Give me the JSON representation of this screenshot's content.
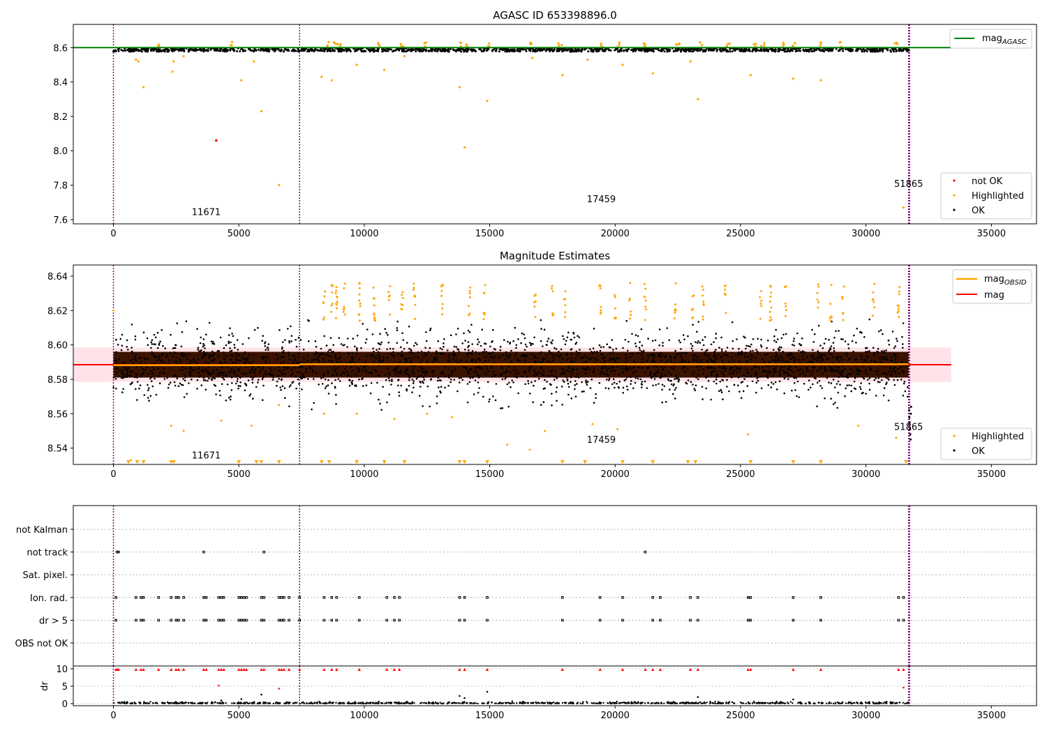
{
  "colors": {
    "ok": "#000000",
    "highlighted": "#ffa500",
    "not_ok": "#ff0000",
    "mag_agasc": "#008000",
    "mag_obsid": "#ffa500",
    "mag": "#ff0000",
    "band_fill": "#ffc0cb",
    "obsid_marker": "#800080",
    "dense_core": "#3a1200"
  },
  "chart_data": [
    {
      "type": "scatter",
      "title": "AGASC ID 653398896.0",
      "xlim": [
        -1600,
        36800
      ],
      "ylim": [
        7.575,
        8.735
      ],
      "xticks": [
        0,
        5000,
        10000,
        15000,
        20000,
        25000,
        30000,
        35000
      ],
      "xtick_labels": [
        "0",
        "5000",
        "10000",
        "15000",
        "20000",
        "25000",
        "30000",
        "35000"
      ],
      "yticks": [
        7.6,
        7.8,
        8.0,
        8.2,
        8.4,
        8.6
      ],
      "ytick_labels": [
        "7.6",
        "7.8",
        "8.0",
        "8.2",
        "8.4",
        "8.6"
      ],
      "lines": [
        {
          "name": "mag_AGASC",
          "y": 8.6,
          "x": [
            -1600,
            33400
          ]
        }
      ],
      "vlines": [
        0,
        7420,
        31700,
        31720,
        31740
      ],
      "annotations": [
        {
          "text": "11671",
          "x": 3700,
          "y": 7.625
        },
        {
          "text": "17459",
          "x": 19450,
          "y": 7.7
        },
        {
          "text": "51865",
          "x": 31700,
          "y": 7.79
        }
      ],
      "legend_line": {
        "label_main": "mag",
        "label_sub": "AGASC",
        "placement": "upper right"
      },
      "legend_points": {
        "entries": [
          "not OK",
          "Highlighted",
          "OK"
        ],
        "placement": "lower right"
      },
      "ok_band": {
        "y_center": 8.587,
        "spread": 0.013,
        "x": [
          0,
          31700
        ]
      },
      "highlighted_points": [
        [
          900,
          8.53
        ],
        [
          1000,
          8.52
        ],
        [
          1200,
          8.37
        ],
        [
          2350,
          8.46
        ],
        [
          2400,
          8.52
        ],
        [
          2800,
          8.55
        ],
        [
          5100,
          8.41
        ],
        [
          5600,
          8.52
        ],
        [
          5900,
          8.23
        ],
        [
          6600,
          7.8
        ],
        [
          8300,
          8.43
        ],
        [
          8700,
          8.41
        ],
        [
          9700,
          8.5
        ],
        [
          10800,
          8.47
        ],
        [
          11600,
          8.55
        ],
        [
          13800,
          8.37
        ],
        [
          14000,
          8.02
        ],
        [
          14900,
          8.29
        ],
        [
          16700,
          8.54
        ],
        [
          17900,
          8.44
        ],
        [
          18900,
          8.53
        ],
        [
          20300,
          8.5
        ],
        [
          21500,
          8.45
        ],
        [
          23000,
          8.52
        ],
        [
          23300,
          8.3
        ],
        [
          25400,
          8.44
        ],
        [
          27100,
          8.42
        ],
        [
          28200,
          8.41
        ],
        [
          31500,
          7.67
        ]
      ],
      "highlighted_top_x": [
        1800,
        4700,
        8600,
        8800,
        9000,
        10600,
        11500,
        12400,
        13800,
        14100,
        15000,
        16600,
        17800,
        19500,
        20100,
        21200,
        22500,
        23400,
        24500,
        25600,
        25900,
        26700,
        27100,
        28200,
        29000,
        31200
      ],
      "not_ok_points": [
        [
          4100,
          8.06
        ]
      ]
    },
    {
      "type": "scatter",
      "title": "Magnitude Estimates",
      "xlim": [
        -1600,
        36800
      ],
      "ylim": [
        8.5305,
        8.6465
      ],
      "xticks": [
        0,
        5000,
        10000,
        15000,
        20000,
        25000,
        30000,
        35000
      ],
      "xtick_labels": [
        "0",
        "5000",
        "10000",
        "15000",
        "20000",
        "25000",
        "30000",
        "35000"
      ],
      "yticks": [
        8.54,
        8.56,
        8.58,
        8.6,
        8.62,
        8.64
      ],
      "ytick_labels": [
        "8.54",
        "8.56",
        "8.58",
        "8.60",
        "8.62",
        "8.64"
      ],
      "band": {
        "y0": 8.5785,
        "y1": 8.5985,
        "x": [
          -1600,
          33400
        ]
      },
      "lines": [
        {
          "name": "mag",
          "y": 8.5885,
          "x": [
            -1600,
            33400
          ]
        },
        {
          "name": "mag_OBSID",
          "segments": [
            [
              0,
              7420,
              8.5882
            ],
            [
              7420,
              31700,
              8.5888
            ]
          ]
        }
      ],
      "vlines": [
        0,
        7420,
        31700,
        31720,
        31740
      ],
      "annotations": [
        {
          "text": "11671",
          "x": 3700,
          "y": 8.534
        },
        {
          "text": "17459",
          "x": 19450,
          "y": 8.543
        },
        {
          "text": "51865",
          "x": 31700,
          "y": 8.5505
        }
      ],
      "legend_line": {
        "entries": [
          {
            "label_main": "mag",
            "label_sub": "OBSID",
            "color": "orange"
          },
          {
            "label_main": "mag",
            "label_sub": "",
            "color": "red"
          }
        ],
        "placement": "upper right"
      },
      "legend_points": {
        "entries": [
          "Highlighted",
          "OK"
        ],
        "placement": "lower right"
      },
      "ok_band": {
        "y_center": 8.5885,
        "spread": 0.012,
        "x": [
          0,
          31700
        ]
      },
      "highlighted_clusters_x": [
        8400,
        8700,
        8900,
        9200,
        9800,
        10400,
        11000,
        11500,
        12000,
        13100,
        14200,
        14800,
        16800,
        17500,
        18000,
        19400,
        20000,
        20600,
        21200,
        22400,
        23100,
        23500,
        24400,
        25800,
        26200,
        26800,
        28100,
        28600,
        29100,
        30300,
        31300
      ],
      "highlighted_points": [
        [
          0,
          8.62
        ],
        [
          700,
          8.533
        ],
        [
          2300,
          8.553
        ],
        [
          2800,
          8.55
        ],
        [
          4300,
          8.556
        ],
        [
          5500,
          8.553
        ],
        [
          6600,
          8.565
        ],
        [
          8400,
          8.56
        ],
        [
          9700,
          8.56
        ],
        [
          11200,
          8.557
        ],
        [
          12500,
          8.56
        ],
        [
          13500,
          8.558
        ],
        [
          15700,
          8.542
        ],
        [
          16600,
          8.539
        ],
        [
          17200,
          8.55
        ],
        [
          19100,
          8.554
        ],
        [
          20100,
          8.551
        ],
        [
          25300,
          8.548
        ],
        [
          29700,
          8.553
        ],
        [
          31200,
          8.546
        ]
      ],
      "triangle_markers_x": [
        600,
        950,
        1200,
        2300,
        2400,
        5000,
        5700,
        5900,
        6600,
        8300,
        8600,
        9700,
        10800,
        11600,
        13800,
        14000,
        14900,
        17900,
        18800,
        20300,
        21500,
        22900,
        23200,
        25400,
        27100,
        28200,
        31600
      ],
      "tail_points": [
        [
          31720,
          8.562
        ],
        [
          31730,
          8.558
        ],
        [
          31740,
          8.555
        ],
        [
          31760,
          8.551
        ],
        [
          31770,
          8.548
        ],
        [
          31780,
          8.545
        ],
        [
          31790,
          8.56
        ],
        [
          31800,
          8.564
        ]
      ]
    },
    {
      "type": "scatter",
      "title": "",
      "xlim": [
        -1600,
        36800
      ],
      "categories": [
        "not Kalman",
        "not track",
        "Sat. pixel.",
        "Ion. rad.",
        "dr > 5",
        "OBS not OK"
      ],
      "flags": {
        "not Kalman": [],
        "not track": [
          150,
          200,
          3600,
          6000,
          21200
        ],
        "Sat. pixel.": [],
        "Ion. rad.": [
          100,
          900,
          1100,
          1200,
          1800,
          2300,
          2500,
          2600,
          2800,
          3600,
          3700,
          4200,
          4300,
          4400,
          5000,
          5100,
          5200,
          5300,
          5900,
          6000,
          6600,
          6700,
          6800,
          7000,
          7420,
          8400,
          8700,
          8900,
          9800,
          10900,
          11200,
          11400,
          13800,
          14000,
          14900,
          17900,
          19400,
          20300,
          21500,
          21800,
          23000,
          23300,
          25300,
          25400,
          27100,
          28200,
          31300,
          31500
        ],
        "dr > 5": [
          100,
          900,
          1100,
          1200,
          1800,
          2300,
          2500,
          2600,
          2800,
          3600,
          3700,
          4200,
          4300,
          4400,
          5000,
          5100,
          5200,
          5300,
          5900,
          6000,
          6600,
          6700,
          6800,
          7000,
          7420,
          8400,
          8700,
          8900,
          9800,
          10900,
          11200,
          11400,
          13800,
          14000,
          14900,
          17900,
          19400,
          20300,
          21500,
          21800,
          23000,
          23300,
          25300,
          25400,
          27100,
          28200,
          31300,
          31500
        ],
        "OBS not OK": []
      },
      "vlines": [
        0,
        7420,
        31700,
        31720,
        31740
      ]
    },
    {
      "type": "scatter",
      "title": "",
      "ylabel": "dr",
      "xlim": [
        -1600,
        36800
      ],
      "ylim": [
        -0.6,
        10.8
      ],
      "xticks": [
        0,
        5000,
        10000,
        15000,
        20000,
        25000,
        30000,
        35000
      ],
      "xtick_labels": [
        "0",
        "5000",
        "10000",
        "15000",
        "20000",
        "25000",
        "30000",
        "35000"
      ],
      "yticks": [
        0,
        5,
        10
      ],
      "ytick_labels": [
        "0",
        "5",
        "10"
      ],
      "clipped_x": [
        100,
        150,
        200,
        900,
        1100,
        1200,
        1800,
        2300,
        2500,
        2600,
        2800,
        3600,
        3700,
        4200,
        4300,
        4400,
        5000,
        5100,
        5200,
        5300,
        5900,
        6000,
        6600,
        6700,
        6800,
        7000,
        7420,
        8400,
        8700,
        8900,
        9800,
        10900,
        11200,
        11400,
        13800,
        14000,
        14900,
        17900,
        19400,
        20300,
        21200,
        21500,
        21800,
        23000,
        23300,
        25300,
        25400,
        27100,
        28200,
        31300,
        31500
      ],
      "outlier_points": [
        [
          4200,
          5.2
        ],
        [
          5100,
          1.3
        ],
        [
          5900,
          2.6
        ],
        [
          6600,
          4.3
        ],
        [
          13800,
          2.2
        ],
        [
          14900,
          3.4
        ],
        [
          23300,
          1.9
        ],
        [
          27100,
          1.2
        ],
        [
          31500,
          4.6
        ],
        [
          4300,
          0.9
        ],
        [
          14000,
          1.6
        ]
      ],
      "vlines": [
        0,
        7420,
        31700,
        31720,
        31740
      ]
    }
  ]
}
